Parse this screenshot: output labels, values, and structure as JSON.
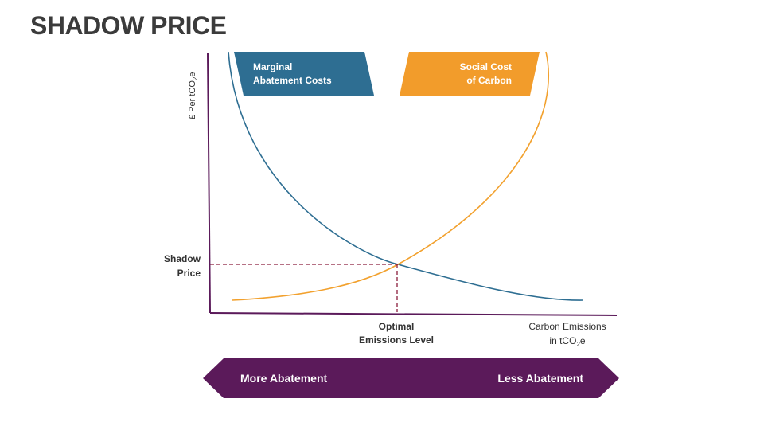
{
  "title": "SHADOW PRICE",
  "axes": {
    "y_label_main": "£ Per tCO",
    "y_label_sub": "2",
    "y_label_end": "e",
    "x_label_line1": "Carbon Emissions",
    "x_label_line2_main": "in tCO",
    "x_label_line2_sub": "2",
    "x_label_line2_end": "e"
  },
  "marker_labels": {
    "shadow_price_line1": "Shadow",
    "shadow_price_line2": "Price",
    "optimal_line1": "Optimal",
    "optimal_line2": "Emissions Level"
  },
  "legend": {
    "mac_line1": "Marginal",
    "mac_line2": "Abatement Costs",
    "scc_line1": "Social Cost",
    "scc_line2": "of Carbon"
  },
  "arrow_bar": {
    "left_label": "More Abatement",
    "right_label": "Less Abatement"
  },
  "colors": {
    "title": "#3b3b3b",
    "axis": "#5b1a5a",
    "mac_curve": "#2e6e92",
    "scc_curve": "#f2a12e",
    "mac_box": "#2e6e92",
    "scc_box": "#f29c2b",
    "guide_lines": "#8a1c3c",
    "arrow_bar": "#5b1a5a",
    "text_dark": "#333333"
  }
}
